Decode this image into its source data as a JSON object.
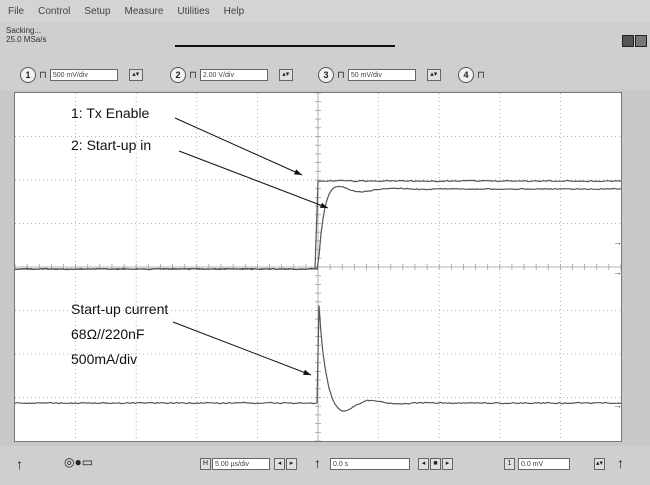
{
  "menu": [
    "File",
    "Control",
    "Setup",
    "Measure",
    "Utilities",
    "Help"
  ],
  "status": {
    "line1": "Sacking...",
    "line2": "25.0 MSa/s"
  },
  "channels": [
    {
      "num": "1",
      "scale": "500 mV/div"
    },
    {
      "num": "2",
      "scale": "2.00 V/div"
    },
    {
      "num": "3",
      "scale": "50 mV/div"
    },
    {
      "num": "4"
    }
  ],
  "annotations": {
    "tx_enable": "1: Tx Enable",
    "startup_in": "2: Start-up in",
    "current_line1": "Start-up current",
    "current_line2": "68Ω//220nF",
    "current_line3": "500mA/div"
  },
  "timebase": {
    "scale": "5.00 µs/div",
    "delay": "0.0 s",
    "trigger": "0.0 mV"
  },
  "colors": {
    "trace": "#555555",
    "grid": "#a0a0a0",
    "background": "#ffffff"
  }
}
